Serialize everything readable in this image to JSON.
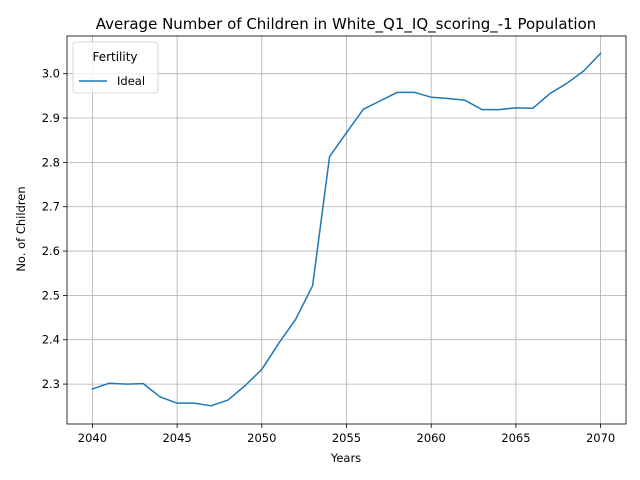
{
  "chart_data": {
    "type": "line",
    "title": "Average Number of Children in White_Q1_IQ_scoring_-1 Population",
    "xlabel": "Years",
    "ylabel": "No. of Children",
    "xlim": [
      2038.5,
      2071.5
    ],
    "ylim": [
      2.21,
      3.085
    ],
    "xticks": [
      2040,
      2045,
      2050,
      2055,
      2060,
      2065,
      2070
    ],
    "yticks": [
      2.3,
      2.4,
      2.5,
      2.6,
      2.7,
      2.8,
      2.9,
      3.0
    ],
    "xtick_labels": [
      "2040",
      "2045",
      "2050",
      "2055",
      "2060",
      "2065",
      "2070"
    ],
    "ytick_labels": [
      "2.3",
      "2.4",
      "2.5",
      "2.6",
      "2.7",
      "2.8",
      "2.9",
      "3.0"
    ],
    "grid": true,
    "legend": {
      "title": "Fertility",
      "position": "upper-left"
    },
    "series": [
      {
        "name": "Ideal",
        "color": "#1f77b4",
        "x": [
          2040,
          2041,
          2042,
          2043,
          2044,
          2045,
          2046,
          2047,
          2048,
          2049,
          2050,
          2051,
          2052,
          2053,
          2054,
          2055,
          2056,
          2057,
          2058,
          2059,
          2060,
          2061,
          2062,
          2063,
          2064,
          2065,
          2066,
          2067,
          2068,
          2069,
          2070
        ],
        "y": [
          2.289,
          2.302,
          2.3,
          2.301,
          2.271,
          2.257,
          2.257,
          2.251,
          2.264,
          2.296,
          2.333,
          2.392,
          2.446,
          2.522,
          2.813,
          2.867,
          2.92,
          2.939,
          2.958,
          2.958,
          2.947,
          2.944,
          2.94,
          2.919,
          2.919,
          2.923,
          2.922,
          2.955,
          2.978,
          3.006,
          3.046
        ]
      }
    ]
  }
}
